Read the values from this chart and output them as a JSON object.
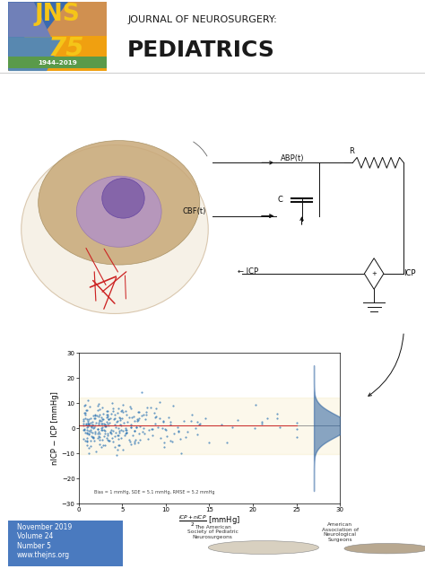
{
  "background_color": "#ffffff",
  "header_logo": {
    "jns_text": "JNS",
    "jns_text_color": "#f5c518",
    "number_75": "75",
    "number_color": "#f5c518",
    "year_text": "1944–2019",
    "year_bg": "#6aaa5a",
    "year_text_color": "#ffffff"
  },
  "journal_title_line1": "JOURNAL OF NEUROSURGERY:",
  "journal_title_line2": "PEDIATRICS",
  "title_color": "#1a1a1a",
  "separator_color": "#cccccc",
  "footer_bg": "#4a7abf",
  "footer_text_color": "#ffffff",
  "footer_lines": [
    "November 2019",
    "Volume 24",
    "Number 5",
    "www.thejns.org"
  ],
  "scatter_xlim": [
    0,
    30
  ],
  "scatter_ylim": [
    -30,
    30
  ],
  "scatter_xticks": [
    0,
    5,
    10,
    15,
    20,
    25,
    30
  ],
  "scatter_yticks": [
    -30,
    -20,
    -10,
    0,
    10,
    20,
    30
  ],
  "scatter_annotation": "Bias = 1 mmHg, SDE = 5.1 mmHg, RMSE = 5.2 mmHg",
  "scatter_dot_color": "#1e6bb0",
  "scatter_band_color": "#f5e6b0"
}
